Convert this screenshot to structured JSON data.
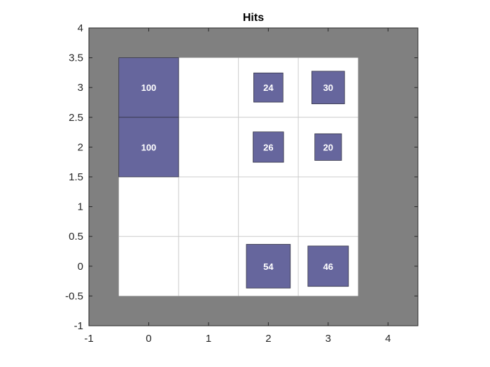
{
  "chart_data": {
    "type": "heatmap",
    "title": "Hits",
    "xlabel": "",
    "ylabel": "",
    "xlim": [
      -1,
      4.5
    ],
    "ylim": [
      -1,
      4
    ],
    "xticks": [
      "-1",
      "0",
      "1",
      "2",
      "3",
      "4"
    ],
    "yticks": [
      "-1",
      "-0.5",
      "0",
      "0.5",
      "1",
      "1.5",
      "2",
      "2.5",
      "3",
      "3.5",
      "4"
    ],
    "grid": true,
    "grid_x": [
      0,
      1,
      2,
      3
    ],
    "grid_y": [
      0,
      1,
      2,
      3
    ],
    "max_hits": 100,
    "cells": [
      {
        "x": 0,
        "y": 3,
        "hits": 100,
        "label": "100"
      },
      {
        "x": 2,
        "y": 3,
        "hits": 24,
        "label": "24"
      },
      {
        "x": 3,
        "y": 3,
        "hits": 30,
        "label": "30"
      },
      {
        "x": 0,
        "y": 2,
        "hits": 100,
        "label": "100"
      },
      {
        "x": 2,
        "y": 2,
        "hits": 26,
        "label": "26"
      },
      {
        "x": 3,
        "y": 2,
        "hits": 20,
        "label": "20"
      },
      {
        "x": 2,
        "y": 0,
        "hits": 54,
        "label": "54"
      },
      {
        "x": 3,
        "y": 0,
        "hits": 46,
        "label": "46"
      }
    ],
    "colors": {
      "background": "#808080",
      "grid_area": "#ffffff",
      "grid_lines": "#cccccc",
      "hit_fill": "#66669d",
      "hit_edge": "#333344",
      "hit_text": "#ffffff",
      "axis": "#262626"
    }
  }
}
